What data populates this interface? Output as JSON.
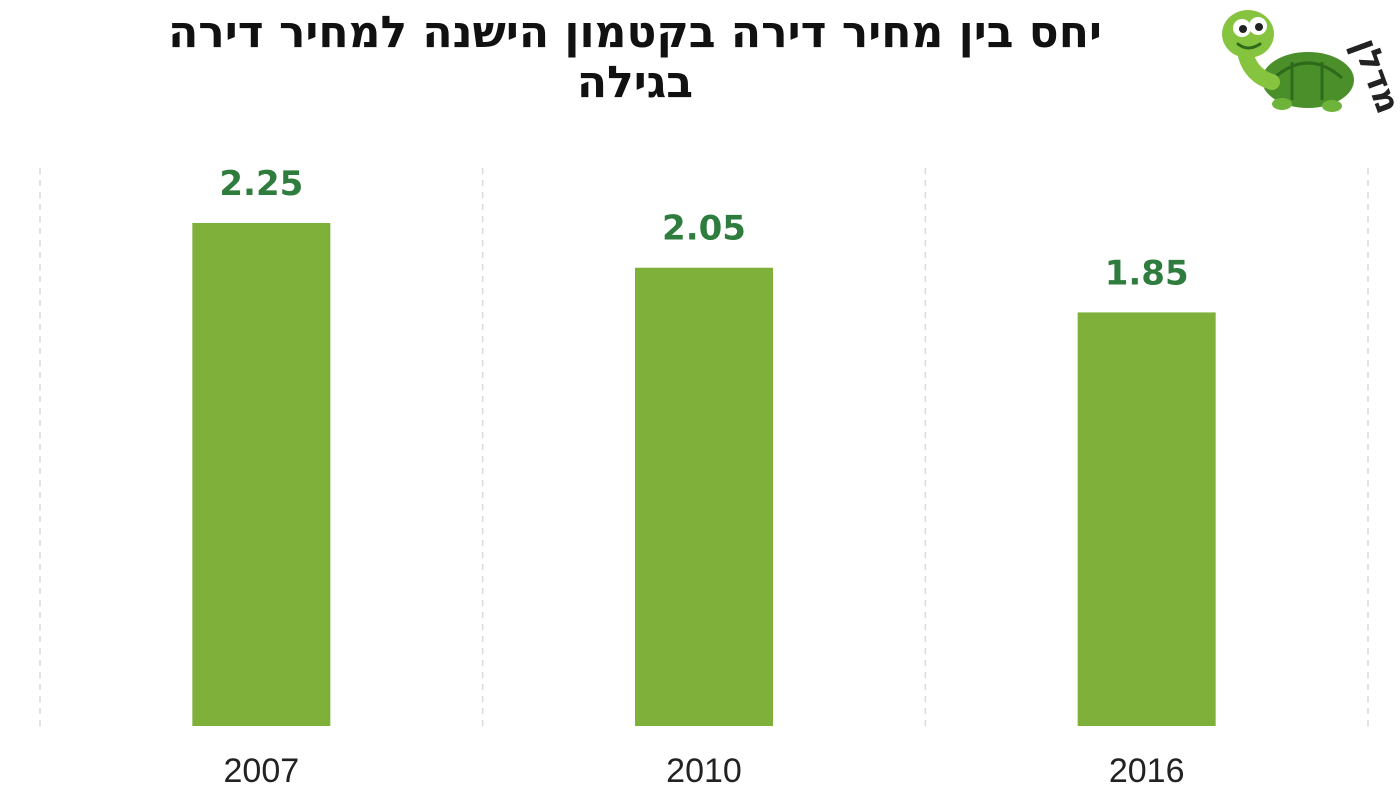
{
  "header": {
    "title_line1": "יחס בין מחיר דירה בקטמון הישנה למחיר דירה",
    "title_line2": "בגילה"
  },
  "logo": {
    "icon": "turtle-mascot-icon",
    "text": "מדלן"
  },
  "colors": {
    "bar": "#7fb13a",
    "label": "#2e7d3e",
    "gridline": "#d9d9d9"
  },
  "chart_data": {
    "type": "bar",
    "title": "יחס בין מחיר דירה בקטמון הישנה למחיר דירה בגילה",
    "categories": [
      "2007",
      "2010",
      "2016"
    ],
    "values": [
      2.25,
      2.05,
      1.85
    ],
    "data_labels": [
      "2.25",
      "2.05",
      "1.85"
    ],
    "xlabel": "",
    "ylabel": "",
    "ylim": [
      0,
      2.25
    ],
    "grid": "vertical-dashed",
    "legend": "none"
  }
}
